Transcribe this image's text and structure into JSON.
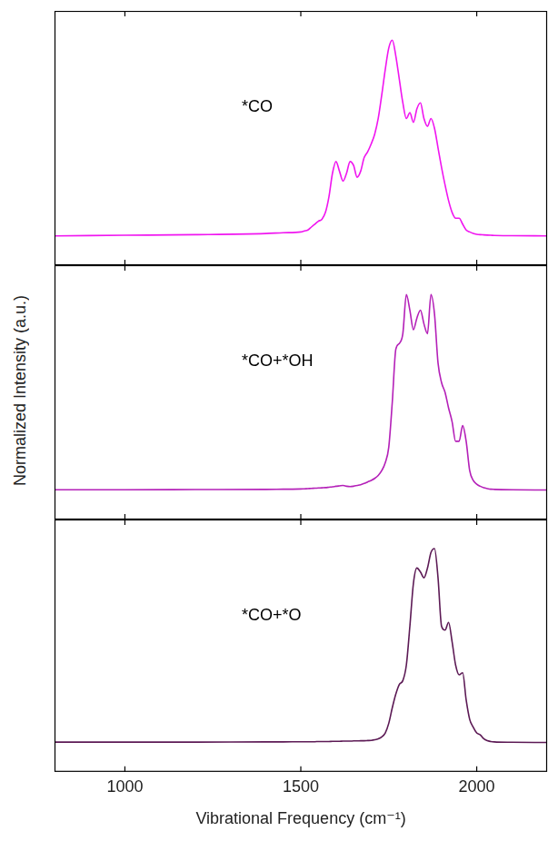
{
  "chart_data": [
    {
      "type": "line",
      "annotation": "*CO",
      "color": "#f015f0",
      "grid": false,
      "tick_labels": false,
      "xlim": [
        800,
        2200
      ],
      "xticks": [
        1000,
        1500,
        2000
      ],
      "ylim": [
        -0.15,
        1.15
      ],
      "x": [
        800,
        1000,
        1200,
        1400,
        1450,
        1500,
        1510,
        1520,
        1530,
        1540,
        1550,
        1560,
        1570,
        1580,
        1590,
        1600,
        1610,
        1620,
        1630,
        1640,
        1650,
        1660,
        1670,
        1680,
        1690,
        1700,
        1710,
        1720,
        1730,
        1740,
        1750,
        1760,
        1770,
        1780,
        1790,
        1800,
        1810,
        1820,
        1830,
        1840,
        1850,
        1860,
        1870,
        1880,
        1890,
        1900,
        1910,
        1920,
        1930,
        1940,
        1950,
        1960,
        1970,
        1980,
        1990,
        2000,
        2010,
        2020,
        2030,
        2040,
        2050,
        2100,
        2200
      ],
      "values": [
        0,
        0.003,
        0.006,
        0.012,
        0.016,
        0.02,
        0.025,
        0.03,
        0.045,
        0.06,
        0.075,
        0.085,
        0.12,
        0.2,
        0.32,
        0.38,
        0.33,
        0.28,
        0.32,
        0.38,
        0.36,
        0.3,
        0.33,
        0.4,
        0.43,
        0.47,
        0.52,
        0.6,
        0.72,
        0.85,
        0.96,
        1.0,
        0.92,
        0.8,
        0.68,
        0.6,
        0.63,
        0.58,
        0.65,
        0.68,
        0.6,
        0.56,
        0.6,
        0.55,
        0.45,
        0.35,
        0.26,
        0.18,
        0.12,
        0.09,
        0.09,
        0.06,
        0.03,
        0.02,
        0.012,
        0.008,
        0.006,
        0.005,
        0.004,
        0.003,
        0.002,
        0.001,
        0
      ]
    },
    {
      "type": "line",
      "annotation": "*CO+*OH",
      "color": "#b420b8",
      "grid": false,
      "tick_labels": false,
      "ylabel": "Normalized Intensity (a.u.)",
      "xlim": [
        800,
        2200
      ],
      "xticks": [
        1000,
        1500,
        2000
      ],
      "ylim": [
        -0.15,
        1.15
      ],
      "x": [
        800,
        1000,
        1200,
        1400,
        1450,
        1500,
        1510,
        1520,
        1530,
        1540,
        1550,
        1560,
        1570,
        1580,
        1590,
        1600,
        1610,
        1620,
        1630,
        1640,
        1650,
        1660,
        1670,
        1680,
        1690,
        1700,
        1710,
        1720,
        1730,
        1740,
        1750,
        1760,
        1770,
        1780,
        1790,
        1800,
        1810,
        1820,
        1830,
        1840,
        1850,
        1860,
        1870,
        1880,
        1890,
        1900,
        1910,
        1920,
        1930,
        1940,
        1950,
        1960,
        1970,
        1980,
        1990,
        2000,
        2010,
        2020,
        2030,
        2040,
        2050,
        2100,
        2200
      ],
      "values": [
        0.002,
        0.002,
        0.003,
        0.004,
        0.005,
        0.006,
        0.007,
        0.008,
        0.009,
        0.01,
        0.011,
        0.012,
        0.013,
        0.015,
        0.017,
        0.02,
        0.022,
        0.024,
        0.02,
        0.018,
        0.02,
        0.024,
        0.028,
        0.034,
        0.042,
        0.05,
        0.06,
        0.075,
        0.1,
        0.14,
        0.22,
        0.45,
        0.72,
        0.75,
        0.8,
        1.0,
        0.92,
        0.82,
        0.88,
        0.92,
        0.85,
        0.8,
        1.0,
        0.9,
        0.65,
        0.55,
        0.5,
        0.42,
        0.35,
        0.25,
        0.25,
        0.33,
        0.25,
        0.1,
        0.05,
        0.03,
        0.02,
        0.012,
        0.008,
        0.005,
        0.004,
        0.002,
        0.001
      ]
    },
    {
      "type": "line",
      "annotation": "*CO+*O",
      "color": "#5c1a55",
      "grid": false,
      "tick_labels": "x",
      "xlabel": "Vibrational Frequency (cm⁻¹)",
      "xlim": [
        800,
        2200
      ],
      "xticks": [
        1000,
        1500,
        2000
      ],
      "ylim": [
        -0.15,
        1.15
      ],
      "x": [
        800,
        1000,
        1200,
        1400,
        1450,
        1500,
        1510,
        1520,
        1530,
        1540,
        1550,
        1560,
        1570,
        1580,
        1590,
        1600,
        1610,
        1620,
        1630,
        1640,
        1650,
        1660,
        1670,
        1680,
        1690,
        1700,
        1710,
        1720,
        1730,
        1740,
        1750,
        1760,
        1770,
        1780,
        1790,
        1800,
        1810,
        1820,
        1830,
        1840,
        1850,
        1860,
        1870,
        1880,
        1890,
        1900,
        1910,
        1920,
        1930,
        1940,
        1950,
        1960,
        1970,
        1980,
        1990,
        2000,
        2010,
        2020,
        2030,
        2040,
        2050,
        2100,
        2200
      ],
      "values": [
        0.003,
        0.003,
        0.003,
        0.004,
        0.004,
        0.005,
        0.005,
        0.005,
        0.005,
        0.005,
        0.006,
        0.006,
        0.006,
        0.006,
        0.007,
        0.007,
        0.007,
        0.008,
        0.008,
        0.008,
        0.009,
        0.009,
        0.01,
        0.01,
        0.011,
        0.012,
        0.015,
        0.02,
        0.03,
        0.05,
        0.1,
        0.18,
        0.25,
        0.3,
        0.32,
        0.4,
        0.6,
        0.82,
        0.9,
        0.88,
        0.85,
        0.9,
        0.98,
        1.0,
        0.85,
        0.6,
        0.58,
        0.62,
        0.52,
        0.4,
        0.35,
        0.36,
        0.22,
        0.12,
        0.08,
        0.05,
        0.04,
        0.02,
        0.01,
        0.006,
        0.004,
        0.002,
        0.001
      ]
    }
  ]
}
